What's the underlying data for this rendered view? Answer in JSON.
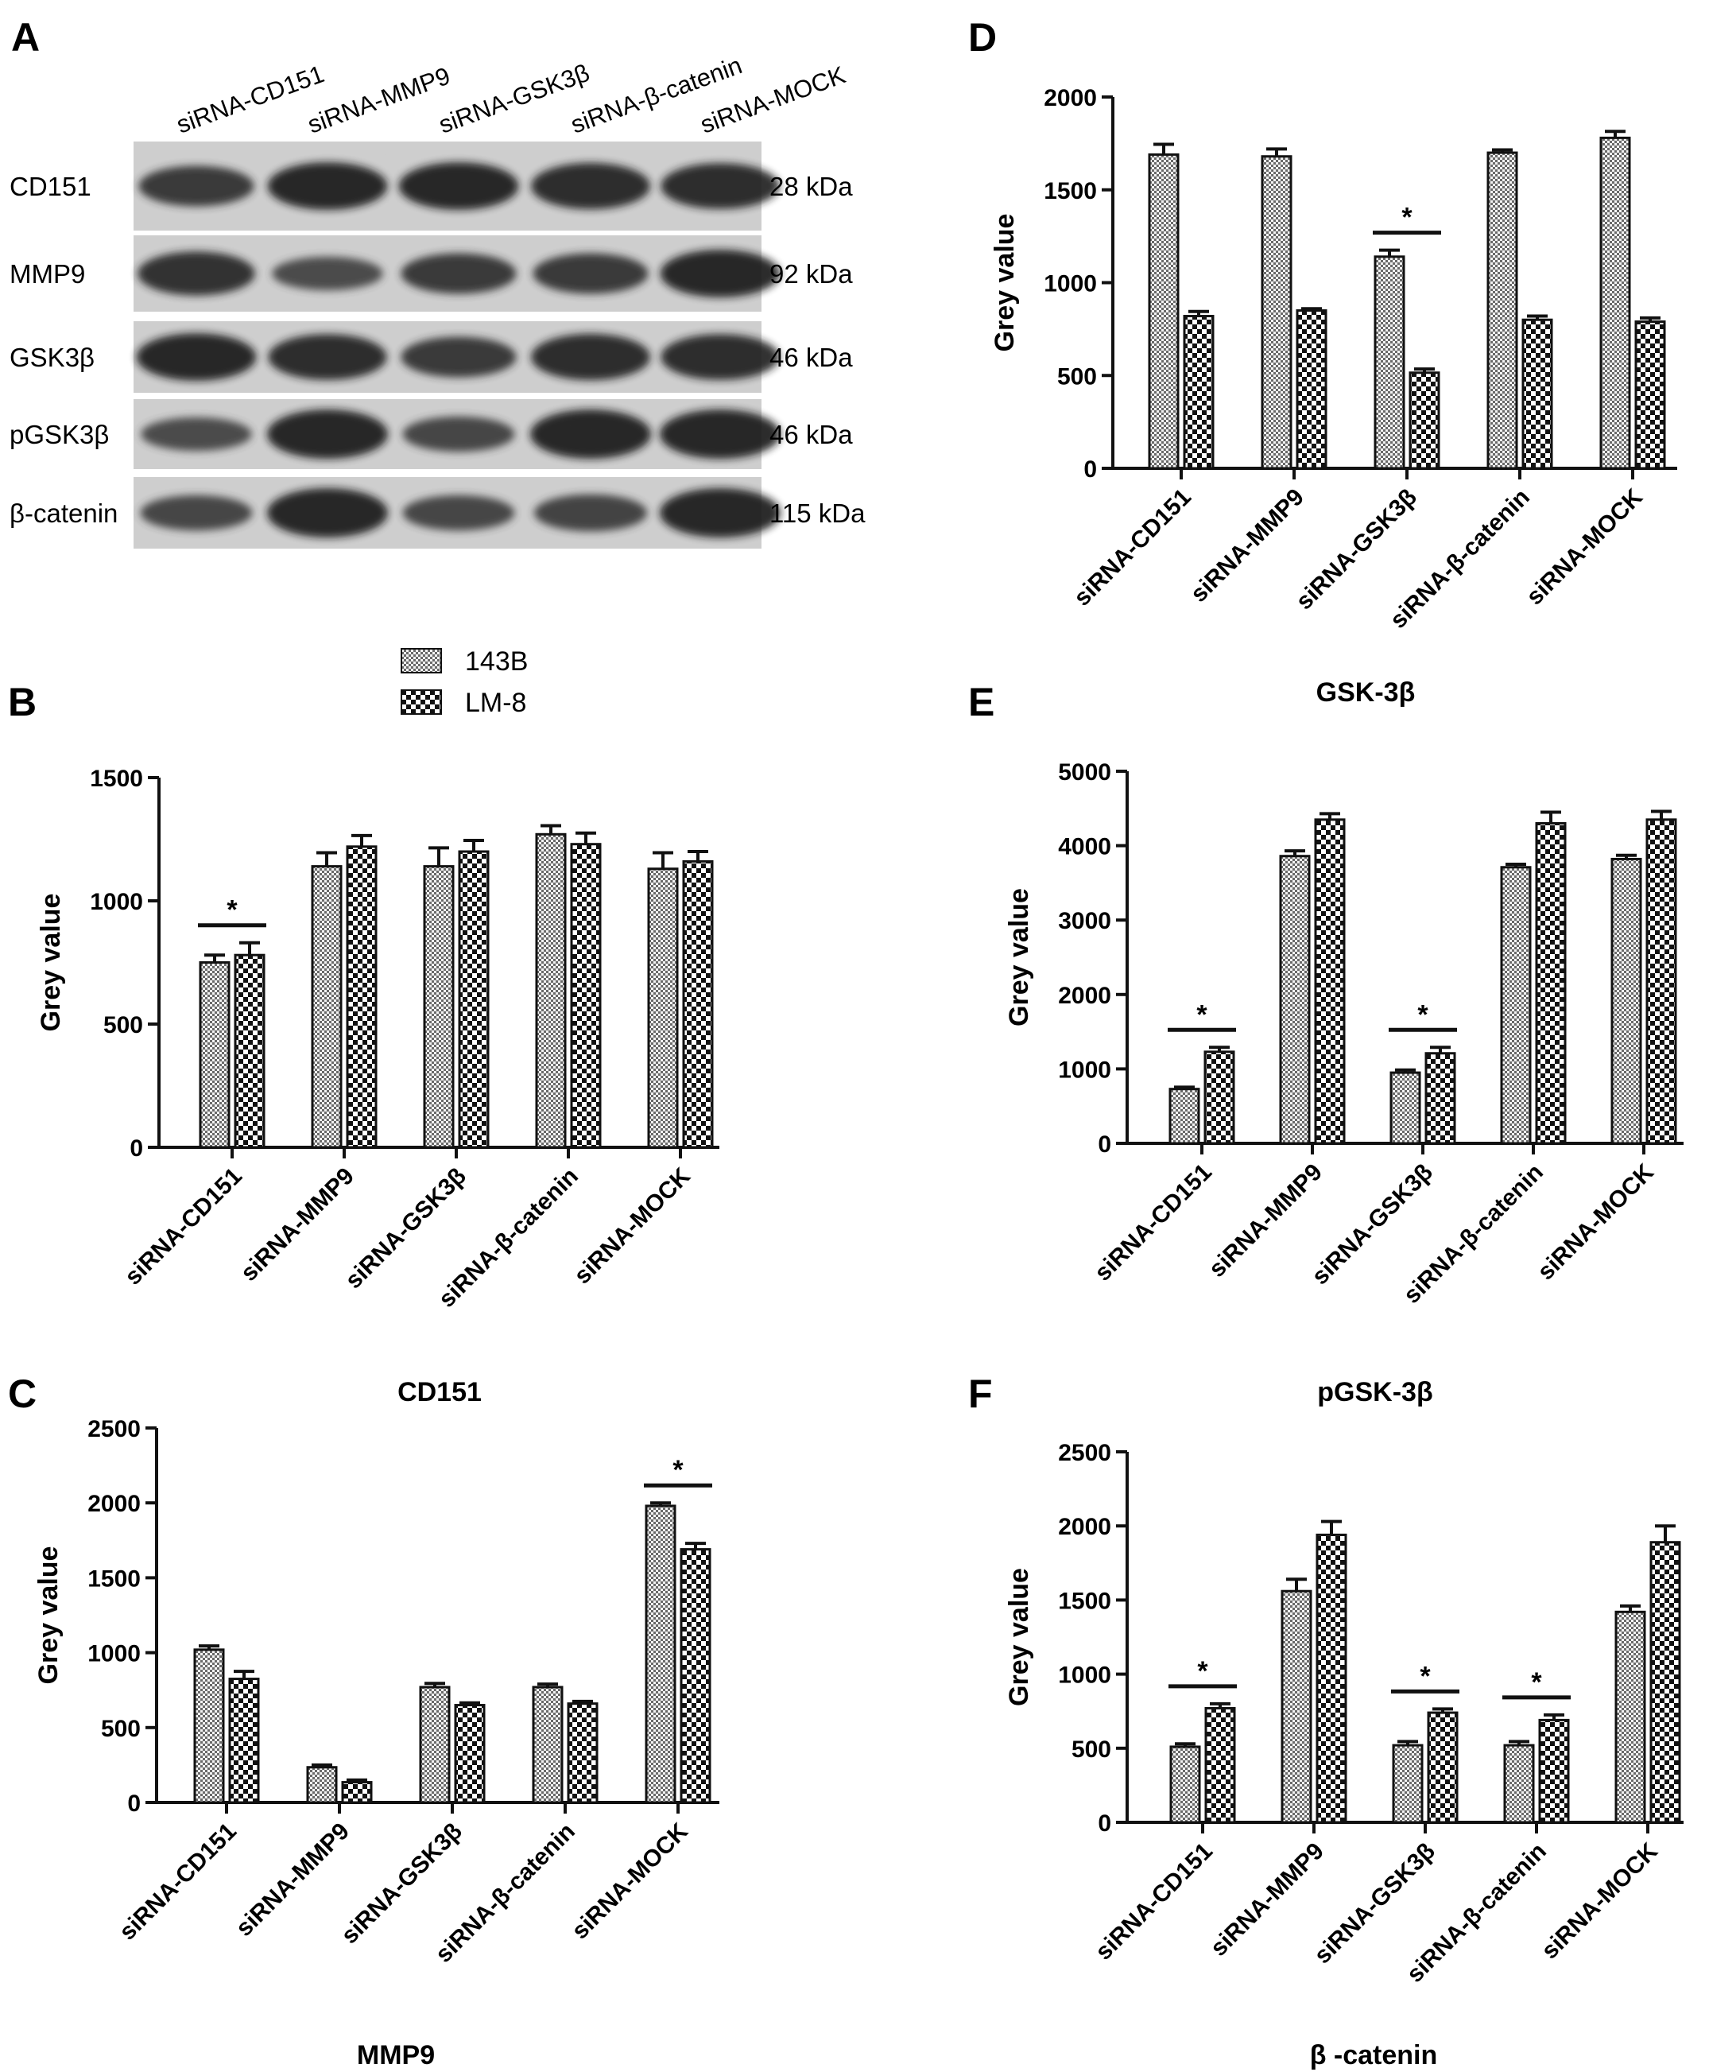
{
  "figure": {
    "legend": [
      {
        "name": "143B",
        "pattern": "fine"
      },
      {
        "name": "LM-8",
        "pattern": "coarse"
      }
    ]
  },
  "blot": {
    "label": "A",
    "lanes": [
      "siRNA-CD151",
      "siRNA-MMP9",
      "siRNA-GSK3β",
      "siRNA-β-catenin",
      "siRNA-MOCK"
    ],
    "rows": [
      {
        "protein": "CD151",
        "size": "28 kDa",
        "intensity": [
          0.75,
          0.95,
          0.95,
          0.92,
          0.9
        ]
      },
      {
        "protein": "MMP9",
        "size": "92 kDa",
        "intensity": [
          0.85,
          0.55,
          0.75,
          0.75,
          0.95
        ]
      },
      {
        "protein": "GSK3β",
        "size": "46 kDa",
        "intensity": [
          0.95,
          0.9,
          0.75,
          0.92,
          0.9
        ]
      },
      {
        "protein": "pGSK3β",
        "size": "46 kDa",
        "intensity": [
          0.55,
          1.0,
          0.6,
          1.0,
          1.0
        ]
      },
      {
        "protein": "β-catenin",
        "size": "115 kDa",
        "intensity": [
          0.6,
          1.0,
          0.6,
          0.65,
          1.0
        ]
      }
    ]
  },
  "chart_data": [
    {
      "type": "bar",
      "panel": "B",
      "title": "CD151",
      "ylabel": "Grey value",
      "categories": [
        "siRNA-CD151",
        "siRNA-MMP9",
        "siRNA-GSK3β",
        "siRNA-β-catenin",
        "siRNA-MOCK"
      ],
      "ylim": [
        0,
        1500
      ],
      "yticks": [
        0,
        500,
        1000,
        1500
      ],
      "series": [
        {
          "name": "143B",
          "values": [
            750,
            1140,
            1140,
            1270,
            1130
          ],
          "errors": [
            30,
            55,
            75,
            35,
            65
          ]
        },
        {
          "name": "LM-8",
          "values": [
            780,
            1220,
            1200,
            1230,
            1160
          ],
          "errors": [
            50,
            45,
            45,
            45,
            40
          ]
        }
      ],
      "significance": [
        {
          "category": "siRNA-CD151",
          "label": "*"
        }
      ]
    },
    {
      "type": "bar",
      "panel": "C",
      "title": "MMP9",
      "ylabel": "Grey value",
      "categories": [
        "siRNA-CD151",
        "siRNA-MMP9",
        "siRNA-GSK3β",
        "siRNA-β-catenin",
        "siRNA-MOCK"
      ],
      "ylim": [
        0,
        2500
      ],
      "yticks": [
        0,
        500,
        1000,
        1500,
        2000,
        2500
      ],
      "series": [
        {
          "name": "143B",
          "values": [
            1020,
            235,
            770,
            770,
            1980
          ],
          "errors": [
            25,
            15,
            25,
            20,
            20
          ]
        },
        {
          "name": "LM-8",
          "values": [
            825,
            135,
            650,
            660,
            1690
          ],
          "errors": [
            50,
            15,
            15,
            15,
            40
          ]
        }
      ],
      "significance": [
        {
          "category": "siRNA-MOCK",
          "label": "*"
        }
      ]
    },
    {
      "type": "bar",
      "panel": "D",
      "title": "GSK-3β",
      "ylabel": "Grey value",
      "categories": [
        "siRNA-CD151",
        "siRNA-MMP9",
        "siRNA-GSK3β",
        "siRNA-β-catenin",
        "siRNA-MOCK"
      ],
      "ylim": [
        0,
        2000
      ],
      "yticks": [
        0,
        500,
        1000,
        1500,
        2000
      ],
      "series": [
        {
          "name": "143B",
          "values": [
            1690,
            1680,
            1140,
            1700,
            1780
          ],
          "errors": [
            55,
            40,
            35,
            15,
            35
          ]
        },
        {
          "name": "LM-8",
          "values": [
            820,
            850,
            515,
            800,
            790
          ],
          "errors": [
            25,
            10,
            20,
            20,
            20
          ]
        }
      ],
      "significance": [
        {
          "category": "siRNA-GSK3β",
          "label": "*"
        }
      ]
    },
    {
      "type": "bar",
      "panel": "E",
      "title": "pGSK-3β",
      "ylabel": "Grey value",
      "categories": [
        "siRNA-CD151",
        "siRNA-MMP9",
        "siRNA-GSK3β",
        "siRNA-β-catenin",
        "siRNA-MOCK"
      ],
      "ylim": [
        0,
        5000
      ],
      "yticks": [
        0,
        1000,
        2000,
        3000,
        4000,
        5000
      ],
      "series": [
        {
          "name": "143B",
          "values": [
            730,
            3860,
            950,
            3710,
            3820
          ],
          "errors": [
            25,
            70,
            35,
            40,
            50
          ]
        },
        {
          "name": "LM-8",
          "values": [
            1230,
            4350,
            1210,
            4300,
            4350
          ],
          "errors": [
            60,
            80,
            80,
            150,
            110
          ]
        }
      ],
      "significance": [
        {
          "category": "siRNA-CD151",
          "label": "*"
        },
        {
          "category": "siRNA-GSK3β",
          "label": "*"
        }
      ]
    },
    {
      "type": "bar",
      "panel": "F",
      "title": "β -catenin",
      "ylabel": "Grey value",
      "categories": [
        "siRNA-CD151",
        "siRNA-MMP9",
        "siRNA-GSK3β",
        "siRNA-β-catenin",
        "siRNA-MOCK"
      ],
      "ylim": [
        0,
        2500
      ],
      "yticks": [
        0,
        500,
        1000,
        1500,
        2000,
        2500
      ],
      "series": [
        {
          "name": "143B",
          "values": [
            510,
            1560,
            520,
            520,
            1420
          ],
          "errors": [
            20,
            80,
            25,
            25,
            40
          ]
        },
        {
          "name": "LM-8",
          "values": [
            770,
            1940,
            740,
            690,
            1890
          ],
          "errors": [
            30,
            90,
            25,
            35,
            110
          ]
        }
      ],
      "significance": [
        {
          "category": "siRNA-CD151",
          "label": "*"
        },
        {
          "category": "siRNA-GSK3β",
          "label": "*"
        },
        {
          "category": "siRNA-β-catenin",
          "label": "*"
        }
      ]
    }
  ]
}
